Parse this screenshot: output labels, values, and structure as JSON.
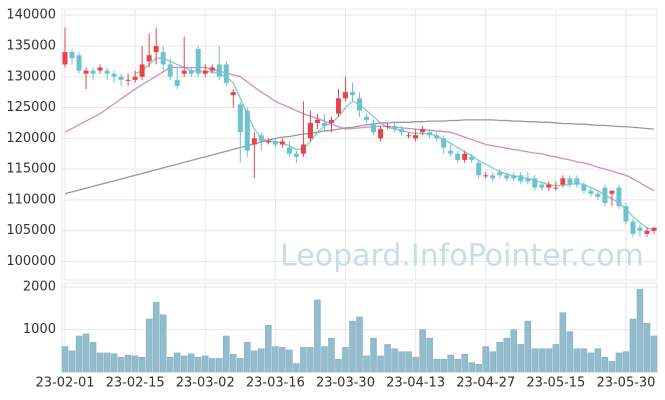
{
  "chart_data": [
    {
      "type": "candlestick",
      "watermark": "Leopard.InfoPointer.com",
      "categories": [
        "23-02-01",
        null,
        null,
        null,
        null,
        null,
        null,
        null,
        null,
        null,
        "23-02-15",
        null,
        null,
        null,
        null,
        null,
        null,
        null,
        null,
        null,
        "23-03-02",
        null,
        null,
        null,
        null,
        null,
        null,
        null,
        null,
        null,
        "23-03-16",
        null,
        null,
        null,
        null,
        null,
        null,
        null,
        null,
        null,
        "23-03-30",
        null,
        null,
        null,
        null,
        null,
        null,
        null,
        null,
        null,
        "23-04-13",
        null,
        null,
        null,
        null,
        null,
        null,
        null,
        null,
        null,
        "23-04-27",
        null,
        null,
        null,
        null,
        null,
        null,
        null,
        null,
        null,
        "23-05-15",
        null,
        null,
        null,
        null,
        null,
        null,
        null,
        null,
        null,
        "23-05-30",
        null,
        null,
        null,
        null
      ],
      "open": [
        132000,
        134000,
        133500,
        130500,
        131000,
        131000,
        131000,
        130500,
        130000,
        129500,
        129500,
        130000,
        132500,
        134000,
        134000,
        132000,
        129500,
        130500,
        131000,
        134500,
        130500,
        131000,
        132000,
        132000,
        127000,
        125500,
        124500,
        119000,
        120500,
        119500,
        119500,
        119000,
        118500,
        117500,
        117500,
        120000,
        122500,
        122500,
        122500,
        124000,
        126500,
        127500,
        126500,
        123500,
        122500,
        120000,
        122000,
        122000,
        121500,
        120500,
        120000,
        121000,
        121000,
        120500,
        120000,
        118000,
        117500,
        116500,
        117000,
        116000,
        114000,
        114000,
        114500,
        114000,
        114000,
        114000,
        113500,
        113500,
        112500,
        112000,
        112000,
        112500,
        113500,
        113500,
        112500,
        111500,
        111000,
        112000,
        111000,
        112000,
        109000,
        106500,
        105500,
        104500,
        105000
      ],
      "high": [
        138000,
        134500,
        134000,
        131500,
        131500,
        132000,
        131500,
        131000,
        130500,
        130500,
        131000,
        135000,
        137000,
        138000,
        135000,
        133000,
        131500,
        136500,
        131500,
        135000,
        132000,
        132000,
        135000,
        132500,
        128000,
        126000,
        125000,
        121000,
        121000,
        120000,
        120000,
        120000,
        119500,
        118000,
        126000,
        124500,
        124000,
        124000,
        123500,
        128000,
        130000,
        129000,
        127500,
        124000,
        123000,
        122000,
        122500,
        122500,
        122000,
        121000,
        121500,
        122000,
        121500,
        121000,
        120500,
        119000,
        118000,
        118000,
        117500,
        116500,
        114500,
        114500,
        115000,
        114500,
        114500,
        114500,
        114500,
        114000,
        113000,
        113000,
        113000,
        114000,
        114000,
        114000,
        113000,
        112000,
        111500,
        112500,
        111500,
        112500,
        109500,
        107000,
        106000,
        105500,
        105500
      ],
      "low": [
        131500,
        132000,
        130500,
        128000,
        129500,
        130500,
        129500,
        129000,
        128500,
        128500,
        129000,
        129500,
        131500,
        132000,
        131000,
        129500,
        128000,
        130000,
        130000,
        130000,
        130000,
        130500,
        129500,
        128500,
        125000,
        116000,
        117000,
        113500,
        118000,
        119000,
        118500,
        118500,
        117000,
        116000,
        117000,
        119500,
        121500,
        121000,
        121000,
        123500,
        126000,
        126000,
        123500,
        122500,
        120500,
        119500,
        121500,
        121000,
        120500,
        120000,
        119500,
        120500,
        120000,
        119500,
        117500,
        117000,
        116000,
        116000,
        116000,
        113500,
        113500,
        113000,
        113500,
        113000,
        113000,
        112500,
        112500,
        111500,
        111500,
        111500,
        111500,
        112000,
        112000,
        112000,
        111000,
        110500,
        110000,
        109000,
        109000,
        108500,
        106000,
        104000,
        104000,
        104000,
        104500
      ],
      "close": [
        134000,
        133000,
        131000,
        131000,
        130500,
        131500,
        130500,
        130000,
        129500,
        129500,
        130000,
        132000,
        133500,
        135000,
        132000,
        130000,
        128500,
        131000,
        130500,
        130500,
        131000,
        131500,
        130000,
        129000,
        127500,
        121000,
        118000,
        120000,
        119500,
        119500,
        119000,
        119500,
        117500,
        117000,
        119000,
        122500,
        123000,
        122000,
        123000,
        126500,
        127500,
        127000,
        124500,
        123000,
        121000,
        121500,
        122000,
        121500,
        121000,
        120500,
        120500,
        121500,
        120500,
        120000,
        118500,
        117500,
        116500,
        117500,
        116500,
        114000,
        114000,
        113500,
        114000,
        113500,
        113500,
        113000,
        113000,
        112000,
        112000,
        112500,
        112000,
        113500,
        112500,
        112500,
        111500,
        111000,
        110500,
        109500,
        111500,
        109000,
        106500,
        104500,
        105000,
        105000,
        105500
      ],
      "up_color": "#e8434b",
      "down_color": "#6cc3cf",
      "series": [
        {
          "color": "#7fcfc4",
          "values": [
            null,
            null,
            null,
            null,
            null,
            null,
            null,
            null,
            null,
            null,
            130500,
            131000,
            132000,
            133000,
            133000,
            132500,
            132000,
            131500,
            131000,
            130800,
            130800,
            130800,
            130500,
            130000,
            129000,
            126500,
            124000,
            121500,
            120000,
            119500,
            119500,
            119200,
            118800,
            118200,
            118300,
            119500,
            121000,
            122000,
            122500,
            123500,
            125000,
            126000,
            125500,
            124500,
            123500,
            122500,
            121800,
            121500,
            121300,
            121000,
            120800,
            120800,
            120700,
            120400,
            119800,
            119200,
            118500,
            117800,
            117200,
            116400,
            115800,
            115200,
            114600,
            114200,
            113900,
            113700,
            113500,
            113200,
            112800,
            112500,
            112300,
            112400,
            112500,
            112700,
            112500,
            112000,
            111500,
            110800,
            110200,
            109500,
            108500,
            107300,
            106300,
            105500,
            105000
          ]
        },
        {
          "color": "#d08cc8",
          "values": [
            121000,
            121600,
            122200,
            122800,
            123400,
            124000,
            124800,
            125600,
            126400,
            127200,
            128000,
            128700,
            129400,
            130100,
            130800,
            131500,
            131500,
            131500,
            131500,
            131500,
            131500,
            131200,
            130900,
            130600,
            130300,
            130000,
            129200,
            128300,
            127500,
            126800,
            126000,
            125500,
            125000,
            124500,
            124000,
            123600,
            123200,
            122800,
            122300,
            121900,
            121500,
            121600,
            121700,
            121800,
            121900,
            122000,
            121900,
            121800,
            121700,
            121600,
            121500,
            121400,
            121300,
            121200,
            121100,
            121000,
            120600,
            120200,
            119800,
            119400,
            119000,
            118800,
            118600,
            118400,
            118200,
            118000,
            117800,
            117600,
            117500,
            117200,
            117000,
            116700,
            116500,
            116200,
            116000,
            115700,
            115300,
            115000,
            114700,
            114300,
            114000,
            113400,
            112800,
            112100,
            111500
          ]
        },
        {
          "color": "#999999",
          "values": [
            111000,
            111300,
            111600,
            111900,
            112200,
            112500,
            112800,
            113100,
            113400,
            113700,
            114000,
            114300,
            114600,
            114900,
            115200,
            115500,
            115800,
            116100,
            116400,
            116700,
            117000,
            117300,
            117600,
            117900,
            118200,
            118500,
            118800,
            119100,
            119400,
            119700,
            120000,
            120200,
            120300,
            120500,
            120700,
            120800,
            121000,
            121200,
            121300,
            121500,
            121700,
            121800,
            122000,
            122200,
            122300,
            122500,
            122500,
            122600,
            122600,
            122600,
            122700,
            122700,
            122800,
            122800,
            122800,
            122900,
            122900,
            123000,
            123000,
            123000,
            123000,
            123000,
            122900,
            122900,
            122800,
            122800,
            122700,
            122700,
            122600,
            122600,
            122500,
            122400,
            122400,
            122300,
            122300,
            122200,
            122100,
            122100,
            122000,
            121900,
            121900,
            121800,
            121700,
            121600,
            121500
          ]
        }
      ],
      "ylim": [
        97000,
        141000
      ],
      "yticks": [
        100000,
        105000,
        110000,
        115000,
        120000,
        125000,
        130000,
        135000,
        140000
      ],
      "grid": true
    },
    {
      "type": "bar",
      "values": [
        600,
        500,
        850,
        900,
        700,
        450,
        450,
        430,
        350,
        400,
        380,
        350,
        1250,
        1650,
        1350,
        350,
        450,
        380,
        430,
        350,
        380,
        320,
        320,
        850,
        420,
        320,
        700,
        500,
        550,
        1100,
        600,
        580,
        520,
        200,
        580,
        580,
        1700,
        600,
        800,
        300,
        580,
        1200,
        1300,
        380,
        800,
        380,
        650,
        550,
        480,
        480,
        350,
        1000,
        800,
        300,
        300,
        400,
        300,
        420,
        220,
        180,
        600,
        480,
        700,
        800,
        1000,
        650,
        1200,
        550,
        550,
        550,
        650,
        1400,
        950,
        550,
        550,
        450,
        550,
        350,
        250,
        450,
        480,
        1250,
        1950,
        1150,
        850
      ],
      "color": "#93bdcd",
      "ylim": [
        0,
        2100
      ],
      "yticks": [
        1000,
        2000
      ],
      "grid": true
    }
  ]
}
